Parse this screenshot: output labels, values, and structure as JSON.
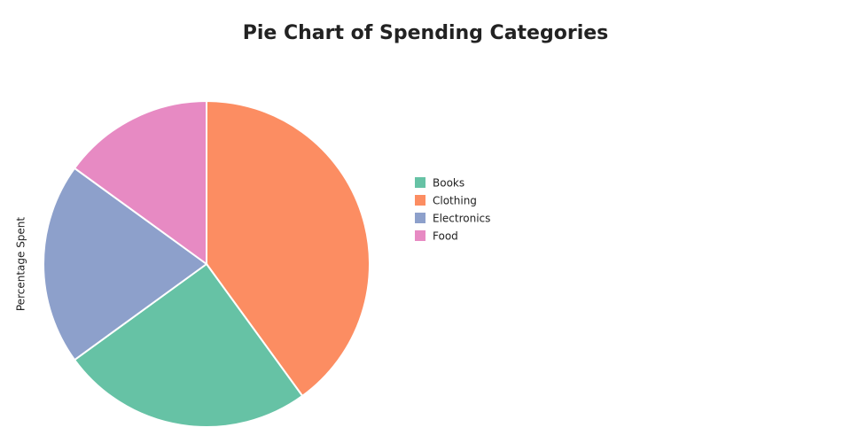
{
  "chart_data": {
    "type": "pie",
    "title": "Pie Chart of Spending Categories",
    "y_label": "Percentage Spent",
    "categories": [
      "Books",
      "Clothing",
      "Electronics",
      "Food"
    ],
    "values": [
      25,
      40,
      20,
      15
    ],
    "colors": [
      "#66c2a5",
      "#fc8d62",
      "#8da0cb",
      "#e78ac3"
    ],
    "legend": "right"
  }
}
